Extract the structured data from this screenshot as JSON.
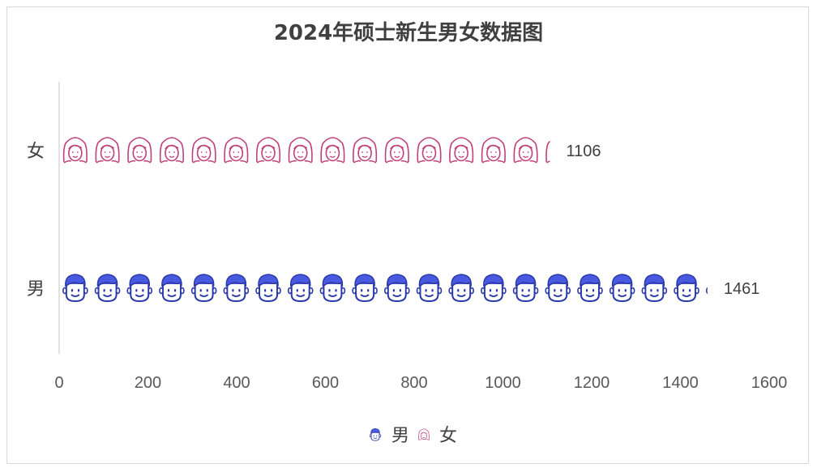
{
  "chart_data": {
    "type": "bar",
    "orientation": "horizontal",
    "title": "2024年硕士新生男女数据图",
    "categories": [
      "女",
      "男"
    ],
    "values": [
      1106,
      1461
    ],
    "data_labels": [
      "1106",
      "1461"
    ],
    "xlim": [
      0,
      1600
    ],
    "xticks": [
      0,
      200,
      400,
      600,
      800,
      1000,
      1200,
      1400,
      1600
    ],
    "tick_labels": [
      "0",
      "200",
      "400",
      "600",
      "800",
      "1000",
      "1200",
      "1400",
      "1600"
    ],
    "icon_unit": 72.5,
    "series": [
      {
        "name": "女",
        "value": 1106,
        "icon": "female-face-icon",
        "color": "#c0407a"
      },
      {
        "name": "男",
        "value": 1461,
        "icon": "male-face-icon",
        "color": "#3f4fd6"
      }
    ],
    "legend": {
      "position": "bottom",
      "entries": [
        "男",
        "女"
      ]
    },
    "grid": false
  }
}
